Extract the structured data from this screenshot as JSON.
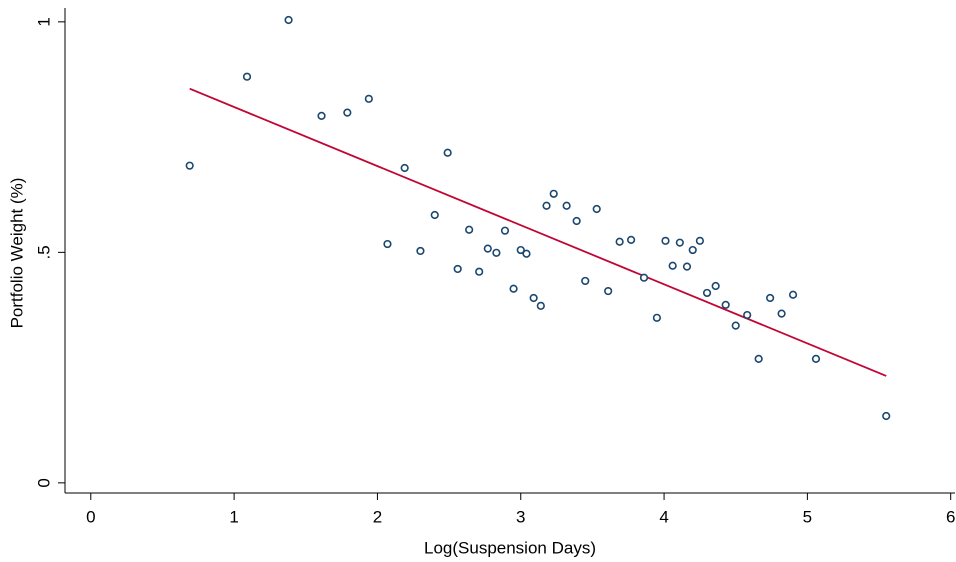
{
  "chart_data": {
    "type": "scatter",
    "x_label": "Log(Suspension Days)",
    "y_label": "Portfolio Weight (%)",
    "x": [
      0.69,
      1.09,
      1.38,
      1.61,
      1.79,
      1.94,
      2.07,
      2.19,
      2.3,
      2.4,
      2.49,
      2.56,
      2.64,
      2.71,
      2.77,
      2.83,
      2.89,
      2.95,
      3.0,
      3.04,
      3.09,
      3.14,
      3.18,
      3.23,
      3.32,
      3.39,
      3.45,
      3.53,
      3.61,
      3.69,
      3.77,
      3.86,
      3.95,
      4.01,
      4.06,
      4.11,
      4.16,
      4.2,
      4.25,
      4.3,
      4.36,
      4.43,
      4.5,
      4.58,
      4.66,
      4.74,
      4.82,
      4.9,
      5.06,
      5.55
    ],
    "values": [
      0.688,
      0.881,
      1.004,
      0.796,
      0.803,
      0.833,
      0.518,
      0.683,
      0.503,
      0.581,
      0.716,
      0.464,
      0.549,
      0.458,
      0.508,
      0.499,
      0.547,
      0.421,
      0.505,
      0.497,
      0.401,
      0.384,
      0.601,
      0.627,
      0.601,
      0.568,
      0.438,
      0.594,
      0.416,
      0.523,
      0.527,
      0.445,
      0.358,
      0.525,
      0.471,
      0.521,
      0.469,
      0.505,
      0.525,
      0.412,
      0.427,
      0.386,
      0.341,
      0.364,
      0.269,
      0.401,
      0.367,
      0.408,
      0.269,
      0.145
    ],
    "color": "#1a476f",
    "fit": {
      "x": [
        0.69,
        5.55
      ],
      "values": [
        0.855,
        0.232
      ],
      "color": "#c10534"
    },
    "xlim": [
      -0.18,
      6.03
    ],
    "ylim": [
      -0.022,
      1.03
    ],
    "xticks": [
      0,
      1,
      2,
      3,
      4,
      5,
      6
    ],
    "yticks": [
      0,
      {
        "value": 0.5,
        "label": ".5"
      },
      1
    ],
    "grid": false
  }
}
